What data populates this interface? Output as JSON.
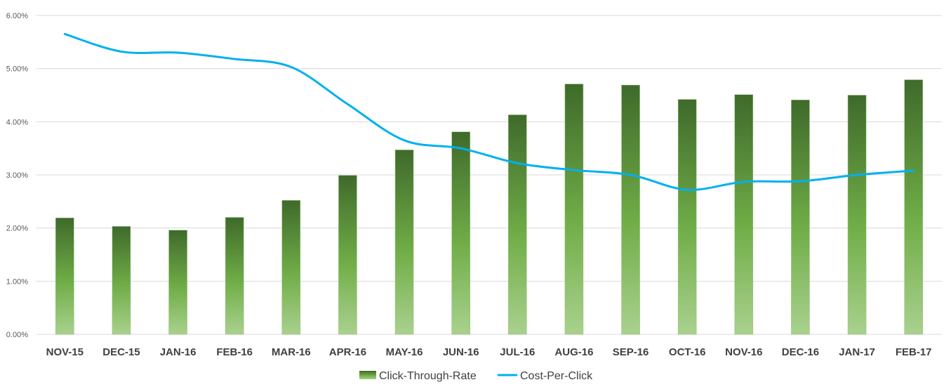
{
  "chart_data": {
    "type": "bar",
    "categories": [
      "NOV-15",
      "DEC-15",
      "JAN-16",
      "FEB-16",
      "MAR-16",
      "APR-16",
      "MAY-16",
      "JUN-16",
      "JUL-16",
      "AUG-16",
      "SEP-16",
      "OCT-16",
      "NOV-16",
      "DEC-16",
      "JAN-17",
      "FEB-17"
    ],
    "series": [
      {
        "name": "Click-Through-Rate",
        "type": "bar",
        "values": [
          2.19,
          2.03,
          1.96,
          2.2,
          2.52,
          2.99,
          3.47,
          3.81,
          4.13,
          4.71,
          4.69,
          4.42,
          4.51,
          4.41,
          4.5,
          4.79
        ],
        "color_top": "#3f6a2b",
        "color_mid": "#70ad47",
        "color_bottom": "#a9d18e"
      },
      {
        "name": "Cost-Per-Click",
        "type": "line",
        "smooth": true,
        "values": [
          5.65,
          5.32,
          5.3,
          5.18,
          5.03,
          4.33,
          3.65,
          3.5,
          3.22,
          3.09,
          3.0,
          2.72,
          2.87,
          2.88,
          3.0,
          3.08
        ],
        "color": "#00b0f0"
      }
    ],
    "ylim": [
      0,
      6
    ],
    "yticks": [
      "0.00%",
      "1.00%",
      "2.00%",
      "3.00%",
      "4.00%",
      "5.00%",
      "6.00%"
    ],
    "grid": true,
    "legend_position": "bottom"
  }
}
